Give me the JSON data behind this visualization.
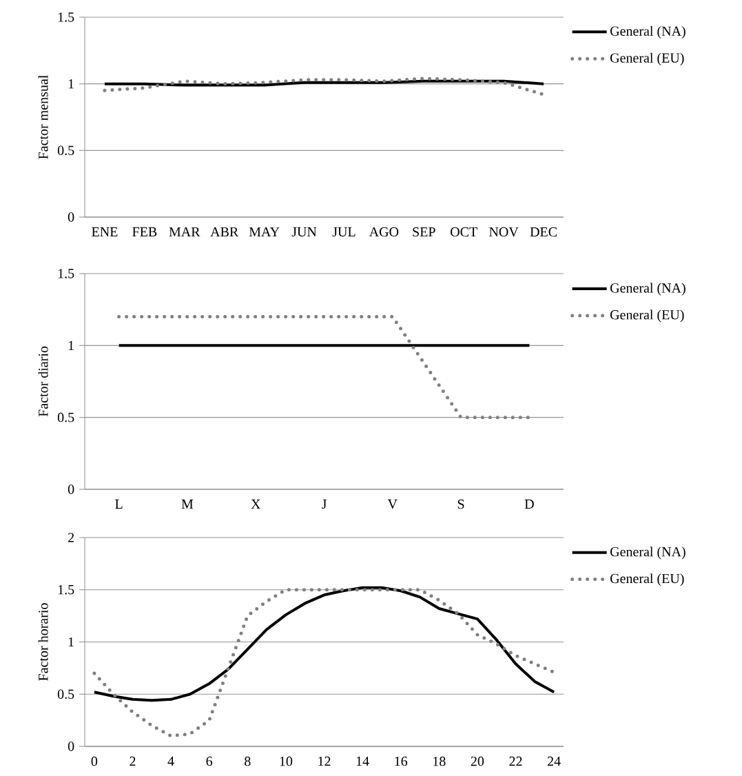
{
  "chart_data": [
    {
      "type": "line",
      "categories": [
        "ENE",
        "FEB",
        "MAR",
        "ABR",
        "MAY",
        "JUN",
        "JUL",
        "AGO",
        "SEP",
        "OCT",
        "NOV",
        "DEC"
      ],
      "ylabel": "Factor mensual",
      "ylim": [
        0,
        1.5
      ],
      "yticks": [
        0,
        0.5,
        1,
        1.5
      ],
      "grid": "y",
      "legend": "right",
      "series": [
        {
          "name": "General (NA)",
          "color": "#000000",
          "line_style": "solid",
          "values": [
            1.0,
            1.0,
            0.99,
            0.99,
            0.99,
            1.01,
            1.01,
            1.01,
            1.02,
            1.02,
            1.02,
            1.0
          ]
        },
        {
          "name": "General (EU)",
          "color": "#808080",
          "line_style": "dotted",
          "values": [
            0.95,
            0.97,
            1.02,
            1.0,
            1.01,
            1.03,
            1.03,
            1.02,
            1.04,
            1.03,
            1.01,
            0.92
          ]
        }
      ]
    },
    {
      "type": "line",
      "categories": [
        "L",
        "M",
        "X",
        "J",
        "V",
        "S",
        "D"
      ],
      "ylabel": "Factor diario",
      "ylim": [
        0,
        1.5
      ],
      "yticks": [
        0,
        0.5,
        1,
        1.5
      ],
      "grid": "y",
      "legend": "right",
      "series": [
        {
          "name": "General (NA)",
          "color": "#000000",
          "line_style": "solid",
          "values": [
            1,
            1,
            1,
            1,
            1,
            1,
            1
          ]
        },
        {
          "name": "General (EU)",
          "color": "#808080",
          "line_style": "dotted",
          "values": [
            1.2,
            1.2,
            1.2,
            1.2,
            1.2,
            0.5,
            0.5
          ]
        }
      ]
    },
    {
      "type": "line",
      "x": [
        0,
        1,
        2,
        3,
        4,
        5,
        6,
        7,
        8,
        9,
        10,
        11,
        12,
        13,
        14,
        15,
        16,
        17,
        18,
        19,
        20,
        21,
        22,
        23,
        24
      ],
      "xlim": [
        -0.5,
        24.5
      ],
      "xticks": [
        0,
        2,
        4,
        6,
        8,
        10,
        12,
        14,
        16,
        18,
        20,
        22,
        24
      ],
      "ylabel": "Factor horario",
      "ylim": [
        0,
        2
      ],
      "yticks": [
        0,
        0.5,
        1,
        1.5,
        2
      ],
      "grid": "y",
      "legend": "right",
      "series": [
        {
          "name": "General (NA)",
          "color": "#000000",
          "line_style": "solid",
          "values": [
            0.52,
            0.48,
            0.45,
            0.44,
            0.45,
            0.5,
            0.6,
            0.74,
            0.93,
            1.12,
            1.26,
            1.37,
            1.45,
            1.49,
            1.52,
            1.52,
            1.49,
            1.43,
            1.32,
            1.27,
            1.22,
            1.02,
            0.79,
            0.62,
            0.52
          ]
        },
        {
          "name": "General (EU)",
          "color": "#808080",
          "line_style": "dotted",
          "values": [
            0.7,
            0.5,
            0.33,
            0.2,
            0.1,
            0.12,
            0.25,
            0.75,
            1.25,
            1.39,
            1.5,
            1.5,
            1.5,
            1.5,
            1.5,
            1.5,
            1.5,
            1.5,
            1.4,
            1.27,
            1.07,
            0.98,
            0.87,
            0.79,
            0.71
          ]
        }
      ]
    }
  ]
}
